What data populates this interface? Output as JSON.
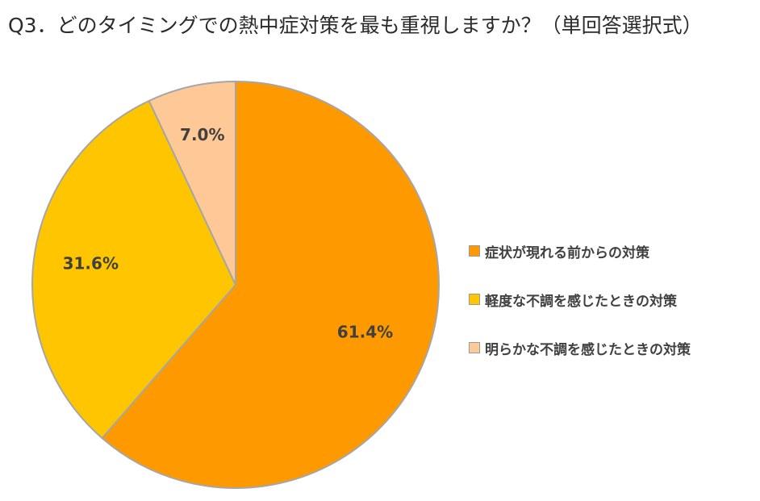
{
  "title": "Q3．どのタイミングでの熱中症対策を最も重視しますか？（単回答選択式）",
  "chart_data": {
    "type": "pie",
    "start_angle_deg": 0,
    "direction": "clockwise",
    "slices": [
      {
        "name": "症状が現れる前からの対策",
        "value": 61.4,
        "label": "61.4%",
        "color": "#FF9900"
      },
      {
        "name": "軽度な不調を感じたときの対策",
        "value": 31.6,
        "label": "31.6%",
        "color": "#FFC600"
      },
      {
        "name": "明らかな不調を感じたときの対策",
        "value": 7.0,
        "label": "7.0%",
        "color": "#FFC897"
      }
    ],
    "slice_border_color": "#A6A6A6",
    "legend_position": "right"
  }
}
